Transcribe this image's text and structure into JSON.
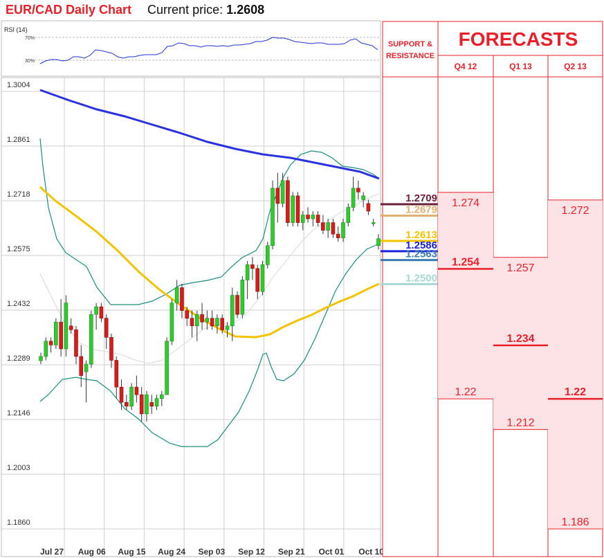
{
  "header": {
    "title": "EUR/CAD Daily Chart",
    "current_label": "Current price:",
    "current_value": "1.2608"
  },
  "chart_data": {
    "type": "candlestick",
    "y_ticks": [
      "1.3004",
      "1.2861",
      "1.2718",
      "1.2575",
      "1.2432",
      "1.2289",
      "1.2146",
      "1.2003",
      "1.1860"
    ],
    "ylim": [
      1.182,
      1.304
    ],
    "x_ticks": [
      "Jul 27",
      "Aug 06",
      "Aug 15",
      "Aug 24",
      "Sep 03",
      "Sep 12",
      "Sep 21",
      "Oct 01",
      "Oct 10"
    ],
    "candles": [
      [
        1.2289,
        1.231,
        1.228,
        1.23
      ],
      [
        1.23,
        1.235,
        1.229,
        1.234
      ],
      [
        1.234,
        1.235,
        1.231,
        1.233
      ],
      [
        1.233,
        1.24,
        1.232,
        1.239
      ],
      [
        1.239,
        1.245,
        1.23,
        1.232
      ],
      [
        1.232,
        1.246,
        1.23,
        1.244
      ],
      [
        1.238,
        1.24,
        1.236,
        1.237
      ],
      [
        1.237,
        1.238,
        1.228,
        1.23
      ],
      [
        1.23,
        1.233,
        1.222,
        1.225
      ],
      [
        1.226,
        1.229,
        1.218,
        1.228
      ],
      [
        1.228,
        1.242,
        1.227,
        1.241
      ],
      [
        1.241,
        1.244,
        1.237,
        1.243
      ],
      [
        1.243,
        1.244,
        1.239,
        1.24
      ],
      [
        1.24,
        1.241,
        1.232,
        1.235
      ],
      [
        1.235,
        1.236,
        1.227,
        1.229
      ],
      [
        1.229,
        1.23,
        1.219,
        1.222
      ],
      [
        1.222,
        1.224,
        1.216,
        1.218
      ],
      [
        1.218,
        1.22,
        1.216,
        1.217
      ],
      [
        1.217,
        1.223,
        1.216,
        1.222
      ],
      [
        1.222,
        1.225,
        1.218,
        1.22
      ],
      [
        1.22,
        1.222,
        1.213,
        1.215
      ],
      [
        1.215,
        1.221,
        1.213,
        1.22
      ],
      [
        1.218,
        1.22,
        1.215,
        1.217
      ],
      [
        1.217,
        1.22,
        1.216,
        1.219
      ],
      [
        1.219,
        1.221,
        1.217,
        1.22
      ],
      [
        1.22,
        1.235,
        1.22,
        1.234
      ],
      [
        1.234,
        1.245,
        1.233,
        1.244
      ],
      [
        1.244,
        1.25,
        1.242,
        1.248
      ],
      [
        1.248,
        1.249,
        1.24,
        1.242
      ],
      [
        1.242,
        1.243,
        1.238,
        1.24
      ],
      [
        1.24,
        1.242,
        1.235,
        1.238
      ],
      [
        1.238,
        1.242,
        1.234,
        1.241
      ],
      [
        1.241,
        1.244,
        1.237,
        1.239
      ],
      [
        1.239,
        1.242,
        1.237,
        1.24
      ],
      [
        1.24,
        1.242,
        1.237,
        1.238
      ],
      [
        1.238,
        1.241,
        1.236,
        1.24
      ],
      [
        1.24,
        1.241,
        1.236,
        1.237
      ],
      [
        1.237,
        1.239,
        1.235,
        1.238
      ],
      [
        1.238,
        1.248,
        1.234,
        1.246
      ],
      [
        1.246,
        1.247,
        1.24,
        1.241
      ],
      [
        1.241,
        1.251,
        1.24,
        1.25
      ],
      [
        1.25,
        1.255,
        1.245,
        1.254
      ],
      [
        1.254,
        1.256,
        1.25,
        1.253
      ],
      [
        1.253,
        1.254,
        1.245,
        1.247
      ],
      [
        1.247,
        1.255,
        1.246,
        1.254
      ],
      [
        1.254,
        1.26,
        1.253,
        1.259
      ],
      [
        1.259,
        1.276,
        1.258,
        1.274
      ],
      [
        1.274,
        1.278,
        1.265,
        1.27
      ],
      [
        1.27,
        1.278,
        1.269,
        1.276
      ],
      [
        1.276,
        1.277,
        1.264,
        1.265
      ],
      [
        1.265,
        1.273,
        1.264,
        1.272
      ],
      [
        1.272,
        1.273,
        1.264,
        1.265
      ],
      [
        1.265,
        1.268,
        1.263,
        1.267
      ],
      [
        1.267,
        1.269,
        1.265,
        1.266
      ],
      [
        1.266,
        1.268,
        1.264,
        1.267
      ],
      [
        1.267,
        1.268,
        1.264,
        1.265
      ],
      [
        1.265,
        1.267,
        1.262,
        1.263
      ],
      [
        1.263,
        1.266,
        1.261,
        1.265
      ],
      [
        1.265,
        1.266,
        1.261,
        1.262
      ],
      [
        1.262,
        1.264,
        1.26,
        1.261
      ],
      [
        1.261,
        1.266,
        1.26,
        1.265
      ],
      [
        1.265,
        1.27,
        1.264,
        1.269
      ],
      [
        1.269,
        1.277,
        1.268,
        1.274
      ],
      [
        1.274,
        1.276,
        1.271,
        1.273
      ],
      [
        1.271,
        1.273,
        1.269,
        1.272
      ],
      [
        1.27,
        1.271,
        1.267,
        1.268
      ],
      [
        1.265,
        1.266,
        1.264,
        1.265
      ],
      [
        1.259,
        1.262,
        1.258,
        1.2608
      ]
    ],
    "ma_blue": [
      [
        0,
        1.3
      ],
      [
        0.25,
        1.293
      ],
      [
        0.5,
        1.284
      ],
      [
        0.75,
        1.279
      ],
      [
        1,
        1.275
      ]
    ],
    "ma_yellow": [
      [
        0,
        1.273
      ],
      [
        0.35,
        1.245
      ],
      [
        0.5,
        1.236
      ],
      [
        0.65,
        1.236
      ],
      [
        0.85,
        1.244
      ],
      [
        1,
        1.251
      ]
    ],
    "rsi": {
      "label": "RSI (14)",
      "levels": [
        "70%",
        "30%"
      ]
    },
    "support_resistance": {
      "heading": [
        "SUPPORT &",
        "RESISTANCE"
      ],
      "levels": [
        {
          "label": "1.2709",
          "value": 1.2709,
          "color": "#6b1f3a"
        },
        {
          "label": "1.2679",
          "value": 1.2679,
          "color": "#e0b070"
        },
        {
          "label": "1.2613",
          "value": 1.2613,
          "color": "#f4c300"
        },
        {
          "label": "1.2586",
          "value": 1.2586,
          "color": "#1a22d8"
        },
        {
          "label": "1.2563",
          "value": 1.2563,
          "color": "#3a7ab0"
        },
        {
          "label": "1.2500",
          "value": 1.25,
          "color": "#a8d8d4"
        }
      ]
    },
    "forecasts": {
      "heading": "FORECASTS",
      "quarters": [
        {
          "name": "Q4 12",
          "high": "1.274",
          "mid": "1.254",
          "low": "1.22",
          "hv": 1.274,
          "mv": 1.254,
          "lv": 1.22
        },
        {
          "name": "Q1 13",
          "high": "1.257",
          "mid": "1.234",
          "low": "1.212",
          "hv": 1.257,
          "mv": 1.234,
          "lv": 1.212
        },
        {
          "name": "Q2 13",
          "high": "1.272",
          "mid": "1.22",
          "low": "1.186",
          "hv": 1.272,
          "mv": 1.22,
          "lv": 1.186
        }
      ]
    }
  }
}
